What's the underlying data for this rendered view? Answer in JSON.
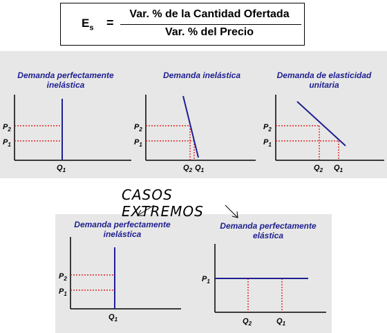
{
  "formula": {
    "lhs": "E",
    "lhs_sub": "s",
    "equals": "=",
    "numerator": "Var.  % de la Cantidad Ofertada",
    "denominator": "Var. % del Precio"
  },
  "extremes_label": "CASOS EXTREMOS",
  "charts": [
    {
      "title_lines": [
        "Demanda perfectamente",
        "inelástica"
      ],
      "y_labels": [
        {
          "base": "P",
          "sub": "2"
        },
        {
          "base": "P",
          "sub": "1"
        }
      ],
      "x_labels": [
        {
          "base": "Q",
          "sub": "1"
        }
      ]
    },
    {
      "title_lines": [
        "Demanda inelástica"
      ],
      "y_labels": [
        {
          "base": "P",
          "sub": "2"
        },
        {
          "base": "P",
          "sub": "1"
        }
      ],
      "x_labels": [
        {
          "base": "Q",
          "sub": "2"
        },
        {
          "base": "Q",
          "sub": "1"
        }
      ]
    },
    {
      "title_lines": [
        "Demanda de elasticidad",
        "unitaria"
      ],
      "y_labels": [
        {
          "base": "P",
          "sub": "2"
        },
        {
          "base": "P",
          "sub": "1"
        }
      ],
      "x_labels": [
        {
          "base": "Q",
          "sub": "2"
        },
        {
          "base": "Q",
          "sub": "1"
        }
      ]
    },
    {
      "title_lines": [
        "Demanda perfectamente",
        "inelástica"
      ],
      "y_labels": [
        {
          "base": "P",
          "sub": "2"
        },
        {
          "base": "P",
          "sub": "1"
        }
      ],
      "x_labels": [
        {
          "base": "Q",
          "sub": "1"
        }
      ]
    },
    {
      "title_lines": [
        "Demanda perfectamente",
        "elástica"
      ],
      "y_labels": [
        {
          "base": "P",
          "sub": "1"
        }
      ],
      "x_labels": [
        {
          "base": "Q",
          "sub": "2"
        },
        {
          "base": "Q",
          "sub": "1"
        }
      ]
    }
  ],
  "colors": {
    "demand_line": "#1e1e90",
    "guide_line": "#dd0000",
    "axis": "#000000",
    "panel_bg": "#e7e7e7"
  }
}
